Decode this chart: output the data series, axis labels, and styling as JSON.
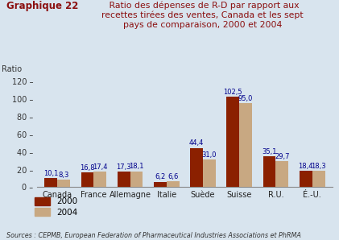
{
  "ylabel": "Ratio",
  "categories": [
    "Canada",
    "France",
    "Allemagne",
    "Italie",
    "Suède",
    "Suisse",
    "R.U.",
    "É.-U."
  ],
  "values_2000": [
    10.1,
    16.8,
    17.3,
    6.2,
    44.4,
    102.5,
    35.1,
    18.4
  ],
  "values_2004": [
    8.3,
    17.4,
    18.1,
    6.6,
    31.0,
    95.0,
    29.7,
    18.3
  ],
  "color_2000": "#8B2000",
  "color_2004": "#C8A882",
  "ylim": [
    0,
    125
  ],
  "yticks": [
    0,
    20,
    40,
    60,
    80,
    100,
    120
  ],
  "bar_width": 0.35,
  "legend_2000": "2000",
  "legend_2004": "2004",
  "source_text": "Sources : CEPMB, European Federation of Pharmaceutical Industries Associations et PhRMA",
  "background_color": "#D8E4EE",
  "title_bold": "Graphique 22",
  "title_rest_line1": " Ratio des dépenses de R-D par rapport aux",
  "title_rest_line2": "recettes tirées des ventes, Canada et les sept",
  "title_rest_line3": "pays de comparaison, 2000 et 2004",
  "title_color": "#8B1010",
  "label_color": "#00008B",
  "value_fontsize": 6.0,
  "source_fontsize": 5.8,
  "cat_fontsize": 7.0,
  "ytick_fontsize": 7.0
}
